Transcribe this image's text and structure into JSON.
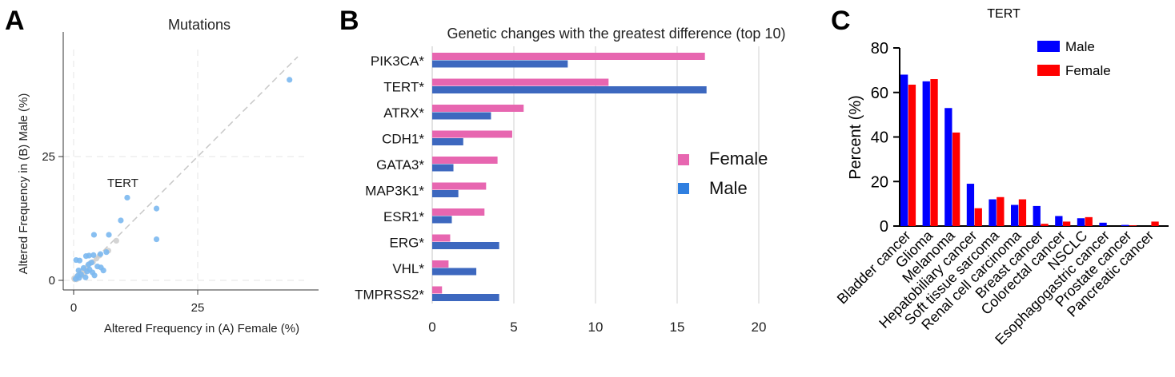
{
  "panels": {
    "a_label": "A",
    "b_label": "B",
    "c_label": "C"
  },
  "chart_data": [
    {
      "type": "scatter",
      "title": "Mutations",
      "xlabel": "Altered Frequency in (A) Female (%)",
      "ylabel": "Altered Frequency in (B) Male (%)",
      "xlim": [
        0,
        45
      ],
      "ylim": [
        0,
        45
      ],
      "xticks": [
        "0",
        "25"
      ],
      "yticks": [
        "0",
        "25"
      ],
      "grid": true,
      "annotation": "TERT",
      "diagonal": true,
      "points_highlight_color": "#7bb8f0",
      "points_gray_color": "#cfcfcf",
      "points_highlight": [
        [
          43.5,
          40.5
        ],
        [
          10.8,
          16.7
        ],
        [
          16.7,
          14.5
        ],
        [
          16.7,
          8.3
        ],
        [
          9.5,
          12.1
        ],
        [
          7.1,
          9.2
        ],
        [
          4.1,
          9.2
        ],
        [
          6.6,
          5.7
        ],
        [
          5.4,
          5.3
        ],
        [
          4.0,
          5.1
        ],
        [
          3.1,
          5.0
        ],
        [
          2.5,
          4.9
        ],
        [
          0.5,
          4.1
        ],
        [
          1.2,
          4.0
        ],
        [
          3.6,
          3.6
        ],
        [
          3.0,
          3.2
        ],
        [
          4.8,
          2.8
        ],
        [
          5.5,
          2.6
        ],
        [
          2.0,
          2.5
        ],
        [
          6.0,
          2.0
        ],
        [
          1.0,
          2.0
        ],
        [
          2.7,
          1.8
        ],
        [
          3.8,
          1.6
        ],
        [
          1.5,
          1.2
        ],
        [
          4.2,
          1.0
        ],
        [
          0.8,
          0.9
        ],
        [
          2.4,
          0.6
        ],
        [
          1.1,
          0.5
        ],
        [
          0.4,
          0.3
        ],
        [
          3.2,
          2.2
        ]
      ],
      "points_gray": [
        [
          8.6,
          8.0
        ],
        [
          7.0,
          6.0
        ],
        [
          5.2,
          5.0
        ],
        [
          4.6,
          4.4
        ],
        [
          3.9,
          3.7
        ],
        [
          3.4,
          3.5
        ],
        [
          2.8,
          2.9
        ],
        [
          2.3,
          2.2
        ],
        [
          1.8,
          1.9
        ],
        [
          1.4,
          1.5
        ],
        [
          1.0,
          1.1
        ],
        [
          0.7,
          0.8
        ],
        [
          0.4,
          0.5
        ],
        [
          0.2,
          0.2
        ],
        [
          0.1,
          0.4
        ],
        [
          0.6,
          0.2
        ],
        [
          1.6,
          1.0
        ],
        [
          2.1,
          1.4
        ]
      ]
    },
    {
      "type": "bar",
      "orientation": "horizontal",
      "title": "Genetic changes with the greatest difference (top 10)",
      "categories": [
        "PIK3CA*",
        "TERT*",
        "ATRX*",
        "CDH1*",
        "GATA3*",
        "MAP3K1*",
        "ESR1*",
        "ERG*",
        "VHL*",
        "TMPRSS2*"
      ],
      "series": [
        {
          "name": "Female",
          "color": "#e766b0",
          "values": [
            16.7,
            10.8,
            5.6,
            4.9,
            4.0,
            3.3,
            3.2,
            1.1,
            1.0,
            0.6
          ]
        },
        {
          "name": "Male",
          "color": "#3d68bf",
          "values": [
            8.3,
            16.8,
            3.6,
            1.9,
            1.3,
            1.6,
            1.2,
            4.1,
            2.7,
            4.1
          ]
        }
      ],
      "xticks": [
        "0",
        "5",
        "10",
        "15",
        "20"
      ],
      "xlim": [
        0,
        21
      ],
      "grid": true,
      "legend": "right"
    },
    {
      "type": "bar",
      "title": "TERT",
      "ylabel": "Percent (%)",
      "ylim": [
        0,
        80
      ],
      "yticks": [
        "0",
        "20",
        "40",
        "60",
        "80"
      ],
      "categories": [
        "Bladder cancer",
        "Glioma",
        "Melanoma",
        "Hepatobiliary cancer",
        "Soft tissue sarcoma",
        "Renal cell carcinoma",
        "Breast cancer",
        "Colorectal cancer",
        "NSCLC",
        "Esophagogastric cancer",
        "Prostate cancer",
        "Pancreatic cancer"
      ],
      "series": [
        {
          "name": "Male",
          "color": "#0000ff",
          "values": [
            68,
            65,
            53,
            19,
            12,
            9.5,
            9,
            4.5,
            3.5,
            1.5,
            0.5,
            0
          ]
        },
        {
          "name": "Female",
          "color": "#ff0000",
          "values": [
            63.5,
            66,
            42,
            8,
            13,
            12,
            1,
            2,
            4,
            0,
            0.3,
            2
          ]
        }
      ],
      "legend": "top-right"
    }
  ]
}
